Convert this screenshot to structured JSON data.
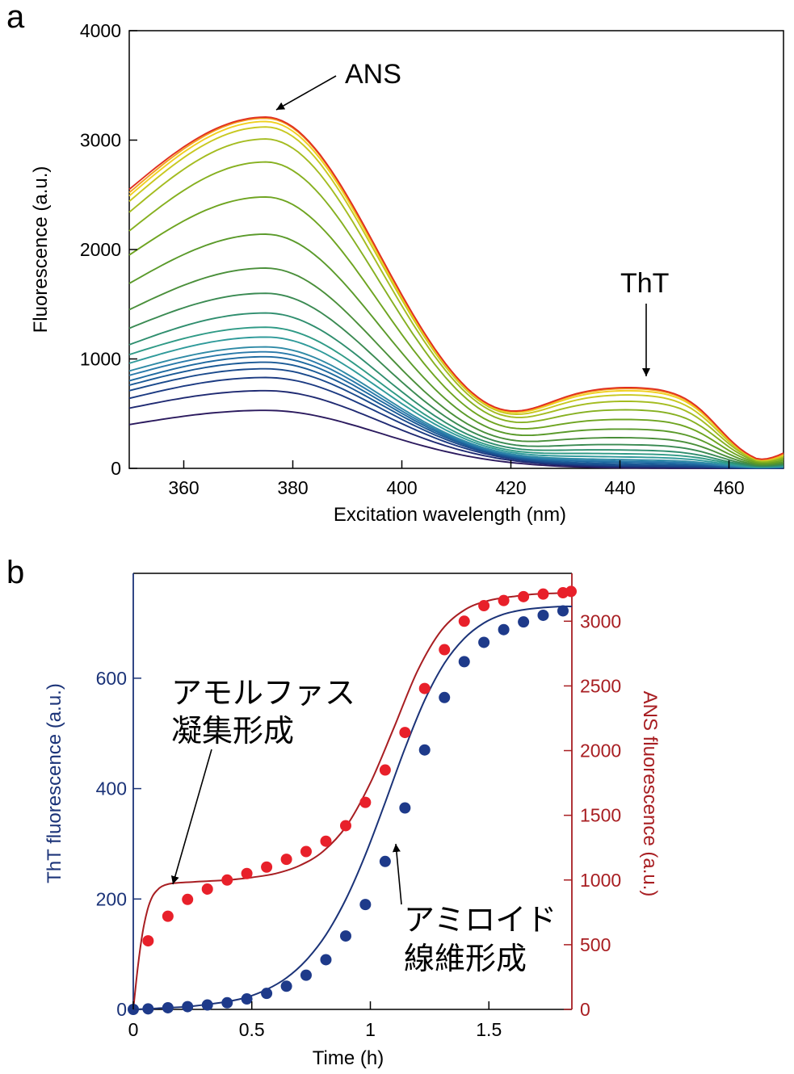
{
  "panel_a": {
    "label": "a",
    "annotations": {
      "ans": "ANS",
      "tht": "ThT"
    }
  },
  "panel_b": {
    "label": "b",
    "annotations": {
      "amorphous_line1": "アモルファス",
      "amorphous_line2": "凝集形成",
      "amyloid_line1": "アミロイド",
      "amyloid_line2": "線維形成"
    }
  },
  "colors": {
    "tht": "#1b3378",
    "ans": "#a81e22",
    "tht_dot": "#1e3a8a",
    "ans_dot": "#e8202a"
  },
  "chart_data": [
    {
      "type": "line",
      "xlabel": "Excitation wavelength (nm)",
      "ylabel": "Fluorescence (a.u.)",
      "xlim": [
        350,
        470
      ],
      "ylim": [
        0,
        4000
      ],
      "xticks": [
        "360",
        "380",
        "400",
        "420",
        "440",
        "460"
      ],
      "yticks": [
        "0",
        "1000",
        "2000",
        "3000",
        "4000"
      ],
      "grid": false,
      "curve_model": {
        "ans_peak_wavelength": 375,
        "tht_peak_wavelength": 445,
        "ans_peak_values": [
          530,
          710,
          830,
          910,
          970,
          1020,
          1065,
          1110,
          1200,
          1290,
          1420,
          1600,
          1830,
          2140,
          2480,
          2800,
          3010,
          3120,
          3170,
          3200,
          3210
        ],
        "tht_plateau_values": [
          0,
          8,
          15,
          22,
          35,
          50,
          60,
          75,
          100,
          130,
          165,
          215,
          280,
          360,
          450,
          540,
          620,
          680,
          720,
          740,
          750
        ],
        "values_at_350": [
          400,
          550,
          640,
          710,
          760,
          800,
          850,
          890,
          960,
          1040,
          1130,
          1280,
          1450,
          1690,
          1950,
          2170,
          2340,
          2440,
          2490,
          2520,
          2550
        ],
        "values_at_470": [
          0,
          2,
          4,
          6,
          8,
          10,
          12,
          15,
          20,
          25,
          30,
          38,
          48,
          60,
          75,
          90,
          105,
          115,
          125,
          130,
          140
        ]
      },
      "series_colors": [
        "#2b1a5e",
        "#1f2a72",
        "#1b3a82",
        "#1a4a8c",
        "#1a5a96",
        "#1f6aa0",
        "#2a7aaa",
        "#2f8aa6",
        "#2f9a9a",
        "#2f9a86",
        "#2f8e6e",
        "#3a8a52",
        "#4a8f3a",
        "#5a9a2a",
        "#6ea420",
        "#86b020",
        "#a4bc20",
        "#c8c820",
        "#f0d020",
        "#f4a020",
        "#e03020"
      ]
    },
    {
      "type": "scatter",
      "xlabel": "Time (h)",
      "ylabel": "ThT fluorescence (a.u.)",
      "y2label": "ANS fluorescence (a.u.)",
      "xlim": [
        0,
        1.85
      ],
      "ylim": [
        0,
        790
      ],
      "y2lim": [
        0,
        3370
      ],
      "xticks": [
        "0",
        "0.5",
        "1",
        "1.5"
      ],
      "yticks": [
        "0",
        "200",
        "400",
        "600"
      ],
      "y2ticks": [
        "0",
        "500",
        "1000",
        "1500",
        "2000",
        "2500",
        "3000"
      ],
      "grid": false,
      "series": [
        {
          "name": "ThT",
          "axis": "left",
          "x": [
            0,
            0.0625,
            0.146,
            0.229,
            0.3125,
            0.396,
            0.479,
            0.5625,
            0.646,
            0.729,
            0.8125,
            0.896,
            0.979,
            1.0625,
            1.146,
            1.229,
            1.3125,
            1.396,
            1.479,
            1.5625,
            1.646,
            1.729,
            1.8125
          ],
          "values": [
            0,
            1,
            3,
            5,
            8,
            12,
            19,
            29,
            42,
            62,
            90,
            133,
            190,
            268,
            365,
            470,
            565,
            630,
            665,
            688,
            702,
            714,
            722
          ],
          "fit": [
            0,
            1,
            3,
            5,
            9,
            14,
            22,
            36,
            57,
            89,
            135,
            199,
            280,
            375,
            473,
            560,
            627,
            672,
            700,
            716,
            724,
            728,
            730
          ]
        },
        {
          "name": "ANS",
          "axis": "right",
          "x": [
            0.0625,
            0.146,
            0.229,
            0.3125,
            0.396,
            0.479,
            0.5625,
            0.646,
            0.729,
            0.8125,
            0.896,
            0.979,
            1.0625,
            1.146,
            1.229,
            1.3125,
            1.396,
            1.479,
            1.5625,
            1.646,
            1.729,
            1.8125,
            1.85
          ],
          "values": [
            530,
            720,
            850,
            930,
            1000,
            1050,
            1100,
            1160,
            1220,
            1300,
            1420,
            1600,
            1850,
            2140,
            2480,
            2780,
            3000,
            3120,
            3160,
            3190,
            3210,
            3220,
            3230
          ],
          "fit_x": [
            0,
            0.02,
            0.04,
            0.06,
            0.08,
            0.1,
            0.12,
            0.15,
            0.2,
            0.25,
            0.3,
            0.35,
            0.4,
            0.5,
            0.6,
            0.7,
            0.8,
            0.9,
            1.0,
            1.1,
            1.2,
            1.3,
            1.4,
            1.5,
            1.6,
            1.7,
            1.85
          ],
          "fit": [
            0,
            340,
            600,
            770,
            870,
            920,
            950,
            970,
            980,
            985,
            990,
            995,
            1000,
            1020,
            1050,
            1110,
            1220,
            1420,
            1750,
            2180,
            2620,
            2930,
            3090,
            3160,
            3190,
            3210,
            3220
          ]
        }
      ]
    }
  ]
}
